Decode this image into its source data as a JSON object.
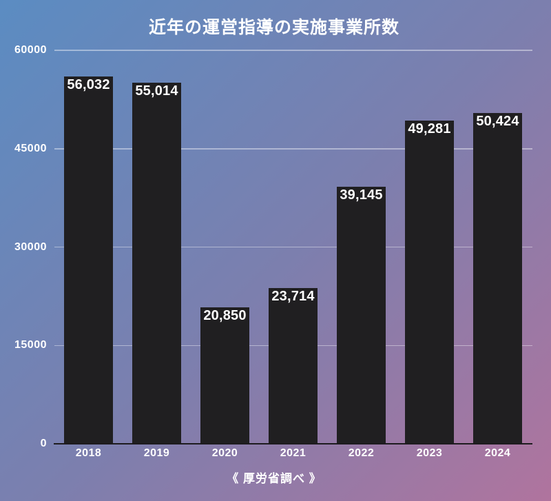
{
  "chart_data": {
    "type": "bar",
    "title": "近年の運営指導の実施事業所数",
    "source": "《 厚労省調べ 》",
    "categories": [
      "2018",
      "2019",
      "2020",
      "2021",
      "2022",
      "2023",
      "2024"
    ],
    "values": [
      56032,
      55014,
      20850,
      23714,
      39145,
      49281,
      50424
    ],
    "value_labels": [
      "56,032",
      "55,014",
      "20,850",
      "23,714",
      "39,145",
      "49,281",
      "50,424"
    ],
    "ylim": [
      0,
      60000
    ],
    "yticks": [
      0,
      15000,
      30000,
      45000,
      60000
    ],
    "ytick_labels": [
      "0",
      "15000",
      "30000",
      "45000",
      "60000"
    ],
    "grid": true,
    "legend": false,
    "value_label_position": "inside-top",
    "colors": {
      "bar": "#201f21",
      "text": "#ffffff",
      "axis_line": "#1d1b1e",
      "gridline": "rgba(255,255,255,0.42)",
      "background_gradient": [
        "#5b8cc2",
        "#7c7fae",
        "#b0749e"
      ]
    }
  }
}
